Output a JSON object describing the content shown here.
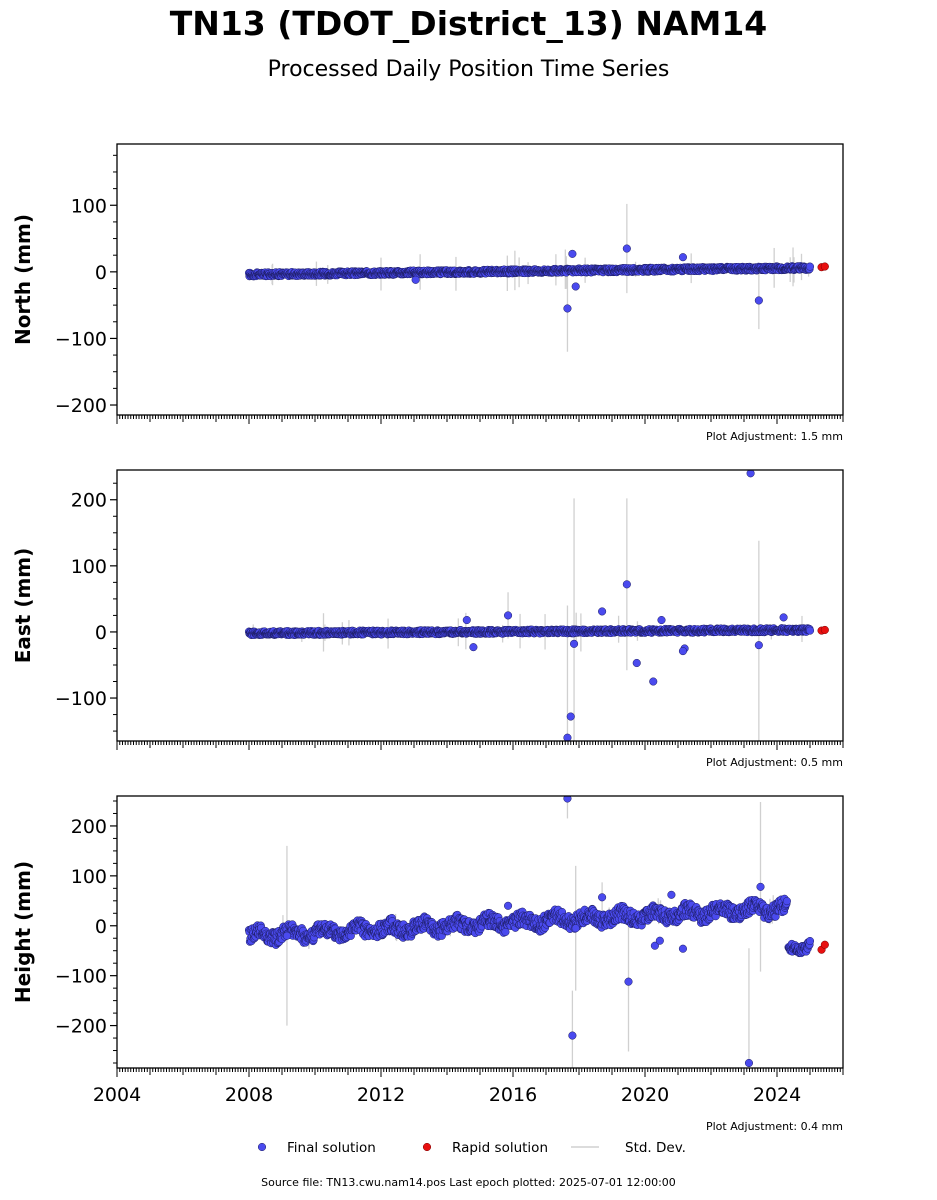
{
  "title": "TN13 (TDOT_District_13) NAM14",
  "subtitle": "Processed Daily Position Time Series",
  "source_line": "Source file: TN13.cwu.nam14.pos  Last epoch plotted: 2025-07-01 12:00:00",
  "colors": {
    "final": "#4a4aee",
    "final_edge": "#1c1c60",
    "rapid": "#e81010",
    "stddev": "#d0d0d0"
  },
  "chart_data": [
    {
      "type": "scatter",
      "ylabel": "North (mm)",
      "adjustment": "Plot Adjustment: 1.5 mm",
      "xlim": [
        2004,
        2026
      ],
      "ylim": [
        -215,
        192
      ],
      "yticks": [
        100,
        0,
        -100,
        -200
      ],
      "ytick_labels": [
        "100",
        "0",
        "−100",
        "−200"
      ],
      "trend": {
        "start": [
          2008.0,
          -4
        ],
        "end": [
          2025.0,
          6
        ],
        "noise": 3
      },
      "outliers": [
        {
          "x": 2017.65,
          "y": -55,
          "err": 65
        },
        {
          "x": 2017.8,
          "y": 27
        },
        {
          "x": 2017.9,
          "y": -22
        },
        {
          "x": 2019.45,
          "y": 35,
          "err": 67
        },
        {
          "x": 2021.15,
          "y": 22
        },
        {
          "x": 2023.45,
          "y": -43,
          "err": 43
        },
        {
          "x": 2013.05,
          "y": -12
        }
      ],
      "rapid": [
        {
          "x": 2025.35,
          "y": 7
        },
        {
          "x": 2025.45,
          "y": 8
        }
      ]
    },
    {
      "type": "scatter",
      "ylabel": "East (mm)",
      "adjustment": "Plot Adjustment: 0.5 mm",
      "xlim": [
        2004,
        2026
      ],
      "ylim": [
        -165,
        245
      ],
      "yticks": [
        200,
        100,
        0,
        -100
      ],
      "ytick_labels": [
        "200",
        "100",
        "0",
        "−100"
      ],
      "trend": {
        "start": [
          2008.0,
          -2
        ],
        "end": [
          2025.0,
          3
        ],
        "noise": 3
      },
      "outliers": [
        {
          "x": 2014.6,
          "y": 18
        },
        {
          "x": 2014.8,
          "y": -23
        },
        {
          "x": 2015.85,
          "y": 25,
          "err": 35
        },
        {
          "x": 2017.65,
          "y": -160,
          "err": 200
        },
        {
          "x": 2017.75,
          "y": -128
        },
        {
          "x": 2017.85,
          "y": -18,
          "err": 220
        },
        {
          "x": 2018.7,
          "y": 31
        },
        {
          "x": 2019.45,
          "y": 72,
          "err": 130
        },
        {
          "x": 2019.75,
          "y": -47
        },
        {
          "x": 2020.25,
          "y": -75
        },
        {
          "x": 2020.5,
          "y": 18
        },
        {
          "x": 2021.2,
          "y": -25
        },
        {
          "x": 2021.15,
          "y": -29
        },
        {
          "x": 2023.2,
          "y": 240,
          "err": 0
        },
        {
          "x": 2023.45,
          "y": -20,
          "err": 158
        },
        {
          "x": 2024.2,
          "y": 22
        }
      ],
      "rapid": [
        {
          "x": 2025.35,
          "y": 2
        },
        {
          "x": 2025.45,
          "y": 3
        }
      ]
    },
    {
      "type": "scatter",
      "ylabel": "Height (mm)",
      "adjustment": "Plot Adjustment: 0.4 mm",
      "xlim": [
        2004,
        2026
      ],
      "ylim": [
        -285,
        260
      ],
      "yticks": [
        200,
        100,
        0,
        -100,
        -200
      ],
      "ytick_labels": [
        "200",
        "100",
        "0",
        "−100",
        "−200"
      ],
      "xticks": [
        2004,
        2008,
        2012,
        2016,
        2020,
        2024
      ],
      "trend": {
        "start": [
          2008.0,
          -20
        ],
        "end": [
          2024.3,
          35
        ],
        "noise": 14
      },
      "step": {
        "start": [
          2024.35,
          -50
        ],
        "end": [
          2025.0,
          -35
        ],
        "noise": 8
      },
      "outliers": [
        {
          "x": 2009.15,
          "y": -20,
          "err": 180
        },
        {
          "x": 2015.85,
          "y": 40
        },
        {
          "x": 2017.65,
          "y": 255,
          "err": 40
        },
        {
          "x": 2017.8,
          "y": -220,
          "err": 90
        },
        {
          "x": 2017.9,
          "y": -5,
          "err": 125
        },
        {
          "x": 2018.7,
          "y": 57,
          "err": 30
        },
        {
          "x": 2019.5,
          "y": -112,
          "err": 140
        },
        {
          "x": 2020.3,
          "y": -40
        },
        {
          "x": 2020.45,
          "y": -30
        },
        {
          "x": 2020.8,
          "y": 62
        },
        {
          "x": 2021.15,
          "y": -46
        },
        {
          "x": 2023.15,
          "y": -275,
          "err": 230
        },
        {
          "x": 2023.5,
          "y": 78,
          "err": 170
        }
      ],
      "rapid": [
        {
          "x": 2025.35,
          "y": -48
        },
        {
          "x": 2025.45,
          "y": -38
        }
      ]
    }
  ],
  "legend": {
    "position": "bottom-center",
    "items": [
      {
        "label": "Final solution",
        "kind": "final"
      },
      {
        "label": "Rapid solution",
        "kind": "rapid"
      },
      {
        "label": "Std. Dev.",
        "kind": "stddev"
      }
    ]
  }
}
